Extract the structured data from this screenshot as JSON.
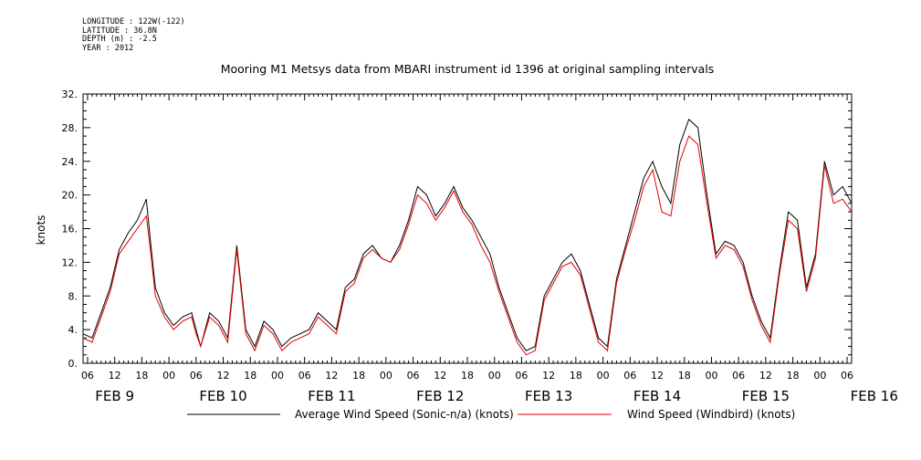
{
  "meta": {
    "longitude": "LONGITUDE : 122W(-122)",
    "latitude": "LATITUDE : 36.8N",
    "depth": "DEPTH (m) : -2.5",
    "year": "YEAR : 2012"
  },
  "chart_data": {
    "type": "line",
    "title": "Mooring M1 Metsys data from MBARI instrument id 1396 at original sampling intervals",
    "xlabel": "",
    "ylabel": "knots",
    "ylim": [
      0,
      32
    ],
    "y_ticks": [
      "0.",
      "4.",
      "8.",
      "12.",
      "16.",
      "20.",
      "24.",
      "28.",
      "32."
    ],
    "xlim_hours": [
      5,
      175
    ],
    "x_tick_labels": [
      "06",
      "12",
      "18",
      "00",
      "06",
      "12",
      "18",
      "00",
      "06",
      "12",
      "18",
      "00",
      "06",
      "12",
      "18",
      "00",
      "06",
      "12",
      "18",
      "00",
      "06",
      "12",
      "18",
      "00",
      "06",
      "12",
      "18",
      "00",
      "06"
    ],
    "date_labels": [
      "FEB  9",
      "FEB 10",
      "FEB 11",
      "FEB 12",
      "FEB 13",
      "FEB 14",
      "FEB 15",
      "FEB 16"
    ],
    "grid": false,
    "legend_position": "bottom",
    "series": [
      {
        "name": "Average Wind Speed (Sonic-n/a) (knots)",
        "color": "#000000",
        "x": [
          5,
          7,
          9,
          11,
          13,
          15,
          17,
          19,
          20,
          21,
          23,
          25,
          27,
          29,
          30,
          31,
          33,
          35,
          37,
          39,
          41,
          43,
          45,
          47,
          49,
          51,
          53,
          55,
          57,
          59,
          61,
          63,
          65,
          67,
          69,
          71,
          73,
          75,
          77,
          79,
          81,
          83,
          85,
          87,
          89,
          91,
          93,
          95,
          97,
          99,
          101,
          103,
          105,
          107,
          109,
          111,
          113,
          115,
          117,
          119,
          121,
          123,
          125,
          127,
          129,
          131,
          133,
          135,
          137,
          139,
          141,
          143,
          145,
          147,
          149,
          151,
          153,
          155,
          157,
          159,
          161,
          163,
          165,
          167,
          169,
          171,
          173,
          175
        ],
        "y": [
          3.5,
          3.0,
          6.0,
          9.0,
          13.5,
          15.5,
          17.0,
          19.5,
          14.0,
          9.0,
          6.0,
          4.5,
          5.5,
          6.0,
          4.0,
          2.0,
          6.0,
          5.0,
          3.0,
          14.0,
          4.0,
          2.0,
          5.0,
          4.0,
          2.0,
          3.0,
          3.5,
          4.0,
          6.0,
          5.0,
          4.0,
          9.0,
          10.0,
          13.0,
          14.0,
          12.5,
          12.0,
          14.0,
          17.0,
          21.0,
          20.0,
          17.5,
          19.0,
          21.0,
          18.5,
          17.0,
          15.0,
          13.0,
          9.0,
          6.0,
          3.0,
          1.5,
          2.0,
          8.0,
          10.0,
          12.0,
          13.0,
          11.0,
          7.0,
          3.0,
          2.0,
          10.0,
          14.0,
          18.0,
          22.0,
          24.0,
          21.0,
          19.0,
          26.0,
          29.0,
          28.0,
          20.0,
          13.0,
          14.5,
          14.0,
          12.0,
          8.0,
          5.0,
          3.0,
          11.0,
          18.0,
          17.0,
          9.0,
          13.0,
          24.0,
          20.0,
          21.0,
          19.0
        ]
      },
      {
        "name": "Wind Speed (Windbird) (knots)",
        "color": "#e00000",
        "x": [
          5,
          7,
          9,
          11,
          13,
          15,
          17,
          19,
          20,
          21,
          23,
          25,
          27,
          29,
          30,
          31,
          33,
          35,
          37,
          39,
          41,
          43,
          45,
          47,
          49,
          51,
          53,
          55,
          57,
          59,
          61,
          63,
          65,
          67,
          69,
          71,
          73,
          75,
          77,
          79,
          81,
          83,
          85,
          87,
          89,
          91,
          93,
          95,
          97,
          99,
          101,
          103,
          105,
          107,
          109,
          111,
          113,
          115,
          117,
          119,
          121,
          123,
          125,
          127,
          129,
          131,
          133,
          135,
          137,
          139,
          141,
          143,
          145,
          147,
          149,
          151,
          153,
          155,
          157,
          159,
          161,
          163,
          165,
          167,
          169,
          171,
          173,
          175
        ],
        "y": [
          3.0,
          2.5,
          5.5,
          8.5,
          13.0,
          14.5,
          16.0,
          17.5,
          13.0,
          8.0,
          5.5,
          4.0,
          5.0,
          5.5,
          3.5,
          2.0,
          5.5,
          4.5,
          2.5,
          13.5,
          3.5,
          1.5,
          4.5,
          3.5,
          1.5,
          2.5,
          3.0,
          3.5,
          5.5,
          4.5,
          3.5,
          8.5,
          9.5,
          12.5,
          13.5,
          12.5,
          12.0,
          13.5,
          16.5,
          20.0,
          19.0,
          17.0,
          18.5,
          20.5,
          18.0,
          16.5,
          14.0,
          12.0,
          8.5,
          5.5,
          2.5,
          1.0,
          1.5,
          7.5,
          9.5,
          11.5,
          12.0,
          10.5,
          6.5,
          2.5,
          1.5,
          9.5,
          13.5,
          17.0,
          21.0,
          23.0,
          18.0,
          17.5,
          24.0,
          27.0,
          26.0,
          19.0,
          12.5,
          14.0,
          13.5,
          11.5,
          7.5,
          4.5,
          2.5,
          10.5,
          17.0,
          16.0,
          8.5,
          12.5,
          23.5,
          19.0,
          19.5,
          18.0
        ]
      }
    ]
  }
}
